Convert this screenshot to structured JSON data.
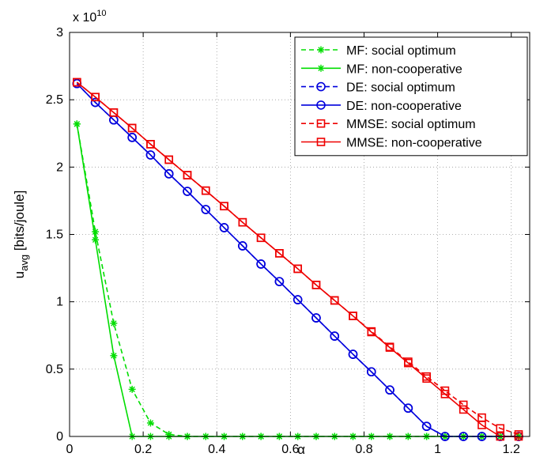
{
  "chart_data": {
    "type": "line",
    "xlabel": "α",
    "ylabel": "u",
    "ylabel_sub": "avg",
    "ylabel_unit": "[bits/joule]",
    "exponent_label": "x 10",
    "exponent_power": "10",
    "xlim": [
      0,
      1.25
    ],
    "ylim": [
      0,
      3
    ],
    "xticks": [
      0,
      0.2,
      0.4,
      0.6,
      0.8,
      1,
      1.2
    ],
    "xtick_labels": [
      "0",
      "0.2",
      "0.4",
      "0.6",
      "0.8",
      "1",
      "1.2"
    ],
    "yticks": [
      0,
      0.5,
      1,
      1.5,
      2,
      2.5,
      3
    ],
    "ytick_labels": [
      "0",
      "0.5",
      "1",
      "1.5",
      "2",
      "2.5",
      "3"
    ],
    "grid": true,
    "legend_position": "top-right",
    "x": [
      0.02,
      0.07,
      0.12,
      0.17,
      0.22,
      0.27,
      0.32,
      0.37,
      0.42,
      0.47,
      0.52,
      0.57,
      0.62,
      0.67,
      0.72,
      0.77,
      0.82,
      0.87,
      0.92,
      0.97,
      1.02,
      1.07,
      1.12,
      1.17,
      1.22
    ],
    "series": [
      {
        "name": "MF: social optimum",
        "color": "#00dd00",
        "dashed": true,
        "marker": "star",
        "values": [
          2.32,
          1.52,
          0.84,
          0.35,
          0.1,
          0.015,
          0,
          0,
          0,
          0,
          0,
          0,
          0,
          0,
          0,
          0,
          0,
          0,
          0,
          0,
          0,
          0,
          0,
          0,
          0
        ]
      },
      {
        "name": "MF: non-cooperative",
        "color": "#00dd00",
        "dashed": false,
        "marker": "star",
        "values": [
          2.32,
          1.46,
          0.6,
          0,
          0,
          0,
          0,
          0,
          0,
          0,
          0,
          0,
          0,
          0,
          0,
          0,
          0,
          0,
          0,
          0,
          0,
          0,
          0,
          0,
          0
        ]
      },
      {
        "name": "DE: social optimum",
        "color": "#0000dd",
        "dashed": true,
        "marker": "circle",
        "values": [
          2.62,
          2.48,
          2.35,
          2.22,
          2.09,
          1.95,
          1.82,
          1.685,
          1.55,
          1.415,
          1.28,
          1.15,
          1.015,
          0.88,
          0.745,
          0.61,
          0.48,
          0.345,
          0.21,
          0.075,
          0,
          0,
          0,
          0,
          0
        ]
      },
      {
        "name": "DE: non-cooperative",
        "color": "#0000dd",
        "dashed": false,
        "marker": "circle",
        "values": [
          2.62,
          2.48,
          2.35,
          2.22,
          2.09,
          1.95,
          1.82,
          1.685,
          1.55,
          1.415,
          1.28,
          1.15,
          1.015,
          0.88,
          0.745,
          0.61,
          0.48,
          0.345,
          0.21,
          0.075,
          0,
          0,
          0,
          0,
          0
        ]
      },
      {
        "name": "MMSE: social optimum",
        "color": "#ee0000",
        "dashed": true,
        "marker": "square",
        "values": [
          2.63,
          2.52,
          2.405,
          2.29,
          2.17,
          2.055,
          1.94,
          1.825,
          1.71,
          1.59,
          1.475,
          1.36,
          1.245,
          1.125,
          1.01,
          0.895,
          0.78,
          0.665,
          0.555,
          0.445,
          0.34,
          0.235,
          0.14,
          0.06,
          0.015
        ]
      },
      {
        "name": "MMSE: non-cooperative",
        "color": "#ee0000",
        "dashed": false,
        "marker": "square",
        "values": [
          2.63,
          2.52,
          2.405,
          2.29,
          2.17,
          2.055,
          1.94,
          1.825,
          1.71,
          1.59,
          1.475,
          1.36,
          1.245,
          1.125,
          1.01,
          0.895,
          0.775,
          0.66,
          0.545,
          0.43,
          0.315,
          0.2,
          0.085,
          0,
          0
        ]
      }
    ]
  }
}
